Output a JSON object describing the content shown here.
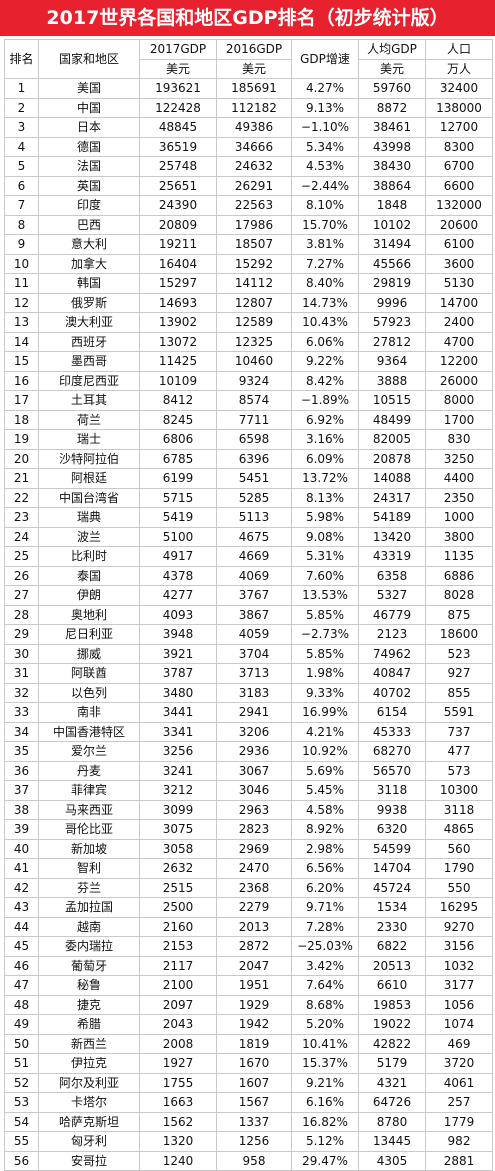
{
  "title": "2017世界各国和地区GDP排名（初步统计版）",
  "header": {
    "rank": "排名",
    "country": "国家和地区",
    "gdp2017": "2017GDP",
    "gdp2016": "2016GDP",
    "growth": "GDP增速",
    "per_capita": "人均GDP",
    "population": "人口",
    "unit_usd_a": "美元",
    "unit_usd_b": "美元",
    "unit_usd_c": "美元",
    "unit_pop": "万人"
  },
  "rows": [
    {
      "rank": "1",
      "country": "美国",
      "gdp2017": "193621",
      "gdp2016": "185691",
      "growth": "4.27%",
      "per_capita": "59760",
      "population": "32400"
    },
    {
      "rank": "2",
      "country": "中国",
      "gdp2017": "122428",
      "gdp2016": "112182",
      "growth": "9.13%",
      "per_capita": "8872",
      "population": "138000"
    },
    {
      "rank": "3",
      "country": "日本",
      "gdp2017": "48845",
      "gdp2016": "49386",
      "growth": "−1.10%",
      "per_capita": "38461",
      "population": "12700"
    },
    {
      "rank": "4",
      "country": "德国",
      "gdp2017": "36519",
      "gdp2016": "34666",
      "growth": "5.34%",
      "per_capita": "43998",
      "population": "8300"
    },
    {
      "rank": "5",
      "country": "法国",
      "gdp2017": "25748",
      "gdp2016": "24632",
      "growth": "4.53%",
      "per_capita": "38430",
      "population": "6700"
    },
    {
      "rank": "6",
      "country": "英国",
      "gdp2017": "25651",
      "gdp2016": "26291",
      "growth": "−2.44%",
      "per_capita": "38864",
      "population": "6600"
    },
    {
      "rank": "7",
      "country": "印度",
      "gdp2017": "24390",
      "gdp2016": "22563",
      "growth": "8.10%",
      "per_capita": "1848",
      "population": "132000"
    },
    {
      "rank": "8",
      "country": "巴西",
      "gdp2017": "20809",
      "gdp2016": "17986",
      "growth": "15.70%",
      "per_capita": "10102",
      "population": "20600"
    },
    {
      "rank": "9",
      "country": "意大利",
      "gdp2017": "19211",
      "gdp2016": "18507",
      "growth": "3.81%",
      "per_capita": "31494",
      "population": "6100"
    },
    {
      "rank": "10",
      "country": "加拿大",
      "gdp2017": "16404",
      "gdp2016": "15292",
      "growth": "7.27%",
      "per_capita": "45566",
      "population": "3600"
    },
    {
      "rank": "11",
      "country": "韩国",
      "gdp2017": "15297",
      "gdp2016": "14112",
      "growth": "8.40%",
      "per_capita": "29819",
      "population": "5130"
    },
    {
      "rank": "12",
      "country": "俄罗斯",
      "gdp2017": "14693",
      "gdp2016": "12807",
      "growth": "14.73%",
      "per_capita": "9996",
      "population": "14700"
    },
    {
      "rank": "13",
      "country": "澳大利亚",
      "gdp2017": "13902",
      "gdp2016": "12589",
      "growth": "10.43%",
      "per_capita": "57923",
      "population": "2400"
    },
    {
      "rank": "14",
      "country": "西班牙",
      "gdp2017": "13072",
      "gdp2016": "12325",
      "growth": "6.06%",
      "per_capita": "27812",
      "population": "4700"
    },
    {
      "rank": "15",
      "country": "墨西哥",
      "gdp2017": "11425",
      "gdp2016": "10460",
      "growth": "9.22%",
      "per_capita": "9364",
      "population": "12200"
    },
    {
      "rank": "16",
      "country": "印度尼西亚",
      "gdp2017": "10109",
      "gdp2016": "9324",
      "growth": "8.42%",
      "per_capita": "3888",
      "population": "26000"
    },
    {
      "rank": "17",
      "country": "土耳其",
      "gdp2017": "8412",
      "gdp2016": "8574",
      "growth": "−1.89%",
      "per_capita": "10515",
      "population": "8000"
    },
    {
      "rank": "18",
      "country": "荷兰",
      "gdp2017": "8245",
      "gdp2016": "7711",
      "growth": "6.92%",
      "per_capita": "48499",
      "population": "1700"
    },
    {
      "rank": "19",
      "country": "瑞士",
      "gdp2017": "6806",
      "gdp2016": "6598",
      "growth": "3.16%",
      "per_capita": "82005",
      "population": "830"
    },
    {
      "rank": "20",
      "country": "沙特阿拉伯",
      "gdp2017": "6785",
      "gdp2016": "6396",
      "growth": "6.09%",
      "per_capita": "20878",
      "population": "3250"
    },
    {
      "rank": "21",
      "country": "阿根廷",
      "gdp2017": "6199",
      "gdp2016": "5451",
      "growth": "13.72%",
      "per_capita": "14088",
      "population": "4400"
    },
    {
      "rank": "22",
      "country": "中国台湾省",
      "gdp2017": "5715",
      "gdp2016": "5285",
      "growth": "8.13%",
      "per_capita": "24317",
      "population": "2350"
    },
    {
      "rank": "23",
      "country": "瑞典",
      "gdp2017": "5419",
      "gdp2016": "5113",
      "growth": "5.98%",
      "per_capita": "54189",
      "population": "1000"
    },
    {
      "rank": "24",
      "country": "波兰",
      "gdp2017": "5100",
      "gdp2016": "4675",
      "growth": "9.08%",
      "per_capita": "13420",
      "population": "3800"
    },
    {
      "rank": "25",
      "country": "比利时",
      "gdp2017": "4917",
      "gdp2016": "4669",
      "growth": "5.31%",
      "per_capita": "43319",
      "population": "1135"
    },
    {
      "rank": "26",
      "country": "泰国",
      "gdp2017": "4378",
      "gdp2016": "4069",
      "growth": "7.60%",
      "per_capita": "6358",
      "population": "6886"
    },
    {
      "rank": "27",
      "country": "伊朗",
      "gdp2017": "4277",
      "gdp2016": "3767",
      "growth": "13.53%",
      "per_capita": "5327",
      "population": "8028"
    },
    {
      "rank": "28",
      "country": "奥地利",
      "gdp2017": "4093",
      "gdp2016": "3867",
      "growth": "5.85%",
      "per_capita": "46779",
      "population": "875"
    },
    {
      "rank": "29",
      "country": "尼日利亚",
      "gdp2017": "3948",
      "gdp2016": "4059",
      "growth": "−2.73%",
      "per_capita": "2123",
      "population": "18600"
    },
    {
      "rank": "30",
      "country": "挪威",
      "gdp2017": "3921",
      "gdp2016": "3704",
      "growth": "5.85%",
      "per_capita": "74962",
      "population": "523"
    },
    {
      "rank": "31",
      "country": "阿联酋",
      "gdp2017": "3787",
      "gdp2016": "3713",
      "growth": "1.98%",
      "per_capita": "40847",
      "population": "927"
    },
    {
      "rank": "32",
      "country": "以色列",
      "gdp2017": "3480",
      "gdp2016": "3183",
      "growth": "9.33%",
      "per_capita": "40702",
      "population": "855"
    },
    {
      "rank": "33",
      "country": "南非",
      "gdp2017": "3441",
      "gdp2016": "2941",
      "growth": "16.99%",
      "per_capita": "6154",
      "population": "5591"
    },
    {
      "rank": "34",
      "country": "中国香港特区",
      "gdp2017": "3341",
      "gdp2016": "3206",
      "growth": "4.21%",
      "per_capita": "45333",
      "population": "737"
    },
    {
      "rank": "35",
      "country": "爱尔兰",
      "gdp2017": "3256",
      "gdp2016": "2936",
      "growth": "10.92%",
      "per_capita": "68270",
      "population": "477"
    },
    {
      "rank": "36",
      "country": "丹麦",
      "gdp2017": "3241",
      "gdp2016": "3067",
      "growth": "5.69%",
      "per_capita": "56570",
      "population": "573"
    },
    {
      "rank": "37",
      "country": "菲律宾",
      "gdp2017": "3212",
      "gdp2016": "3046",
      "growth": "5.45%",
      "per_capita": "3118",
      "population": "10300"
    },
    {
      "rank": "38",
      "country": "马来西亚",
      "gdp2017": "3099",
      "gdp2016": "2963",
      "growth": "4.58%",
      "per_capita": "9938",
      "population": "3118"
    },
    {
      "rank": "39",
      "country": "哥伦比亚",
      "gdp2017": "3075",
      "gdp2016": "2823",
      "growth": "8.92%",
      "per_capita": "6320",
      "population": "4865"
    },
    {
      "rank": "40",
      "country": "新加坡",
      "gdp2017": "3058",
      "gdp2016": "2969",
      "growth": "2.98%",
      "per_capita": "54599",
      "population": "560"
    },
    {
      "rank": "41",
      "country": "智利",
      "gdp2017": "2632",
      "gdp2016": "2470",
      "growth": "6.56%",
      "per_capita": "14704",
      "population": "1790"
    },
    {
      "rank": "42",
      "country": "芬兰",
      "gdp2017": "2515",
      "gdp2016": "2368",
      "growth": "6.20%",
      "per_capita": "45724",
      "population": "550"
    },
    {
      "rank": "43",
      "country": "孟加拉国",
      "gdp2017": "2500",
      "gdp2016": "2279",
      "growth": "9.71%",
      "per_capita": "1534",
      "population": "16295"
    },
    {
      "rank": "44",
      "country": "越南",
      "gdp2017": "2160",
      "gdp2016": "2013",
      "growth": "7.28%",
      "per_capita": "2330",
      "population": "9270"
    },
    {
      "rank": "45",
      "country": "委内瑞拉",
      "gdp2017": "2153",
      "gdp2016": "2872",
      "growth": "−25.03%",
      "per_capita": "6822",
      "population": "3156"
    },
    {
      "rank": "46",
      "country": "葡萄牙",
      "gdp2017": "2117",
      "gdp2016": "2047",
      "growth": "3.42%",
      "per_capita": "20513",
      "population": "1032"
    },
    {
      "rank": "47",
      "country": "秘鲁",
      "gdp2017": "2100",
      "gdp2016": "1951",
      "growth": "7.64%",
      "per_capita": "6610",
      "population": "3177"
    },
    {
      "rank": "48",
      "country": "捷克",
      "gdp2017": "2097",
      "gdp2016": "1929",
      "growth": "8.68%",
      "per_capita": "19853",
      "population": "1056"
    },
    {
      "rank": "49",
      "country": "希腊",
      "gdp2017": "2043",
      "gdp2016": "1942",
      "growth": "5.20%",
      "per_capita": "19022",
      "population": "1074"
    },
    {
      "rank": "50",
      "country": "新西兰",
      "gdp2017": "2008",
      "gdp2016": "1819",
      "growth": "10.41%",
      "per_capita": "42822",
      "population": "469"
    },
    {
      "rank": "51",
      "country": "伊拉克",
      "gdp2017": "1927",
      "gdp2016": "1670",
      "growth": "15.37%",
      "per_capita": "5179",
      "population": "3720"
    },
    {
      "rank": "52",
      "country": "阿尔及利亚",
      "gdp2017": "1755",
      "gdp2016": "1607",
      "growth": "9.21%",
      "per_capita": "4321",
      "population": "4061"
    },
    {
      "rank": "53",
      "country": "卡塔尔",
      "gdp2017": "1663",
      "gdp2016": "1567",
      "growth": "6.16%",
      "per_capita": "64726",
      "population": "257"
    },
    {
      "rank": "54",
      "country": "哈萨克斯坦",
      "gdp2017": "1562",
      "gdp2016": "1337",
      "growth": "16.82%",
      "per_capita": "8780",
      "population": "1779"
    },
    {
      "rank": "55",
      "country": "匈牙利",
      "gdp2017": "1320",
      "gdp2016": "1256",
      "growth": "5.12%",
      "per_capita": "13445",
      "population": "982"
    },
    {
      "rank": "56",
      "country": "安哥拉",
      "gdp2017": "1240",
      "gdp2016": "958",
      "growth": "29.47%",
      "per_capita": "4305",
      "population": "2881"
    }
  ]
}
